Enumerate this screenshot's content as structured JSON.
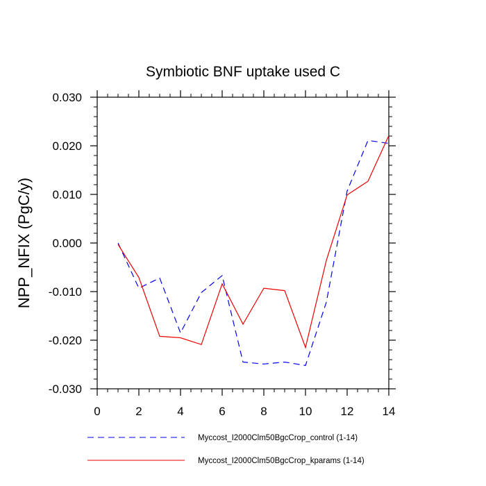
{
  "chart_data": {
    "type": "line",
    "title": "Symbiotic BNF uptake used C",
    "xlabel": "",
    "ylabel": "NPP_NFIX  (PgC/y)",
    "xlim": [
      0,
      14
    ],
    "ylim": [
      -0.03,
      0.03
    ],
    "x_ticks": [
      0,
      2,
      4,
      6,
      8,
      10,
      12,
      14
    ],
    "x_tick_labels": [
      "0",
      "2",
      "4",
      "6",
      "8",
      "10",
      "12",
      "14"
    ],
    "y_ticks": [
      -0.03,
      -0.02,
      -0.01,
      0.0,
      0.01,
      0.02,
      0.03
    ],
    "y_tick_labels": [
      "-0.030",
      "-0.020",
      "-0.010",
      "0.000",
      "0.010",
      "0.020",
      "0.030"
    ],
    "grid": false,
    "legend_position": "bottom",
    "series": [
      {
        "name": "Myccost_I2000Clm50BgcCrop_control (1-14)",
        "color": "#0000ee",
        "style": "dashed",
        "x": [
          1,
          2,
          3,
          4,
          5,
          6,
          7,
          8,
          9,
          10,
          11,
          12,
          13,
          14
        ],
        "y": [
          0.0,
          -0.0093,
          -0.0072,
          -0.0185,
          -0.0102,
          -0.0067,
          -0.0245,
          -0.0249,
          -0.0245,
          -0.0252,
          -0.0122,
          0.0107,
          0.0211,
          0.0205
        ]
      },
      {
        "name": "Myccost_I2000Clm50BgcCrop_kparams (1-14)",
        "color": "#ee0000",
        "style": "solid",
        "x": [
          1,
          2,
          3,
          4,
          5,
          6,
          7,
          8,
          9,
          10,
          11,
          12,
          13,
          14
        ],
        "y": [
          -0.0003,
          -0.0071,
          -0.0192,
          -0.0195,
          -0.0209,
          -0.0084,
          -0.0167,
          -0.0093,
          -0.0098,
          -0.0215,
          -0.0036,
          0.0099,
          0.0127,
          0.0221
        ]
      }
    ]
  }
}
